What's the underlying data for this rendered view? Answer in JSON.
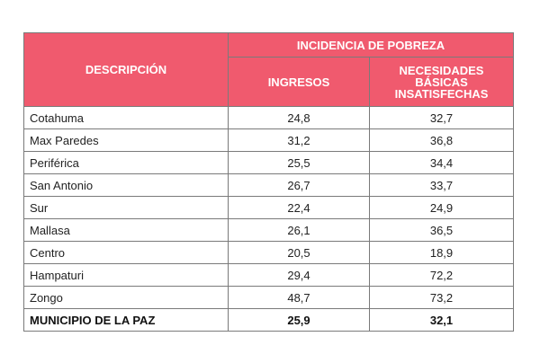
{
  "table": {
    "headers": {
      "descripcion": "DESCRIPCIÓN",
      "incidencia": "INCIDENCIA DE POBREZA",
      "ingresos": "INGRESOS",
      "nbi_line1": "NECESIDADES",
      "nbi_line2": "BÁSICAS",
      "nbi_line3": "INSATISFECHAS"
    },
    "rows": [
      {
        "name": "Cotahuma",
        "ingresos": "24,8",
        "nbi": "32,7"
      },
      {
        "name": "Max Paredes",
        "ingresos": "31,2",
        "nbi": "36,8"
      },
      {
        "name": "Periférica",
        "ingresos": "25,5",
        "nbi": "34,4"
      },
      {
        "name": "San Antonio",
        "ingresos": "26,7",
        "nbi": "33,7"
      },
      {
        "name": "Sur",
        "ingresos": "22,4",
        "nbi": "24,9"
      },
      {
        "name": "Mallasa",
        "ingresos": "26,1",
        "nbi": "36,5"
      },
      {
        "name": "Centro",
        "ingresos": "20,5",
        "nbi": "18,9"
      },
      {
        "name": "Hampaturi",
        "ingresos": "29,4",
        "nbi": "72,2"
      },
      {
        "name": "Zongo",
        "ingresos": "48,7",
        "nbi": "73,2"
      }
    ],
    "total": {
      "name": "MUNICIPIO DE LA PAZ",
      "ingresos": "25,9",
      "nbi": "32,1"
    }
  },
  "colors": {
    "header_bg": "#f05a6e",
    "header_text": "#ffffff",
    "border": "#7a7a7a"
  }
}
